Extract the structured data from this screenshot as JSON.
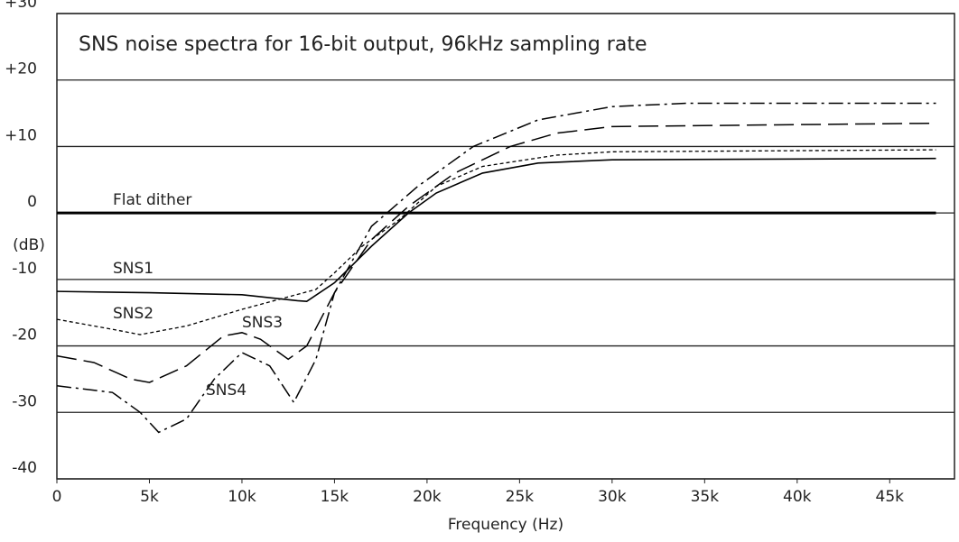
{
  "chart_data": {
    "type": "line",
    "title": "SNS noise spectra for 16-bit output, 96kHz sampling rate",
    "x_label": "Frequency (Hz)",
    "y_label": "(dB)",
    "xlim": [
      0,
      48500
    ],
    "ylim": [
      -40,
      30
    ],
    "xticks": [
      0,
      {
        "value": 5000,
        "label": "5k"
      },
      {
        "value": 10000,
        "label": "10k"
      },
      {
        "value": 15000,
        "label": "15k"
      },
      {
        "value": 20000,
        "label": "20k"
      },
      {
        "value": 25000,
        "label": "25k"
      },
      {
        "value": 30000,
        "label": "30k"
      },
      {
        "value": 35000,
        "label": "35k"
      },
      {
        "value": 40000,
        "label": "40k"
      },
      {
        "value": 45000,
        "label": "45k"
      }
    ],
    "yticks": [
      {
        "value": 30,
        "label": "+30"
      },
      {
        "value": 20,
        "label": "+20"
      },
      {
        "value": 10,
        "label": "+10"
      },
      0,
      -10,
      -20,
      -30,
      -40
    ],
    "grid": true,
    "series": [
      {
        "name": "Flat dither",
        "color": "#000000",
        "linestyle": "solid",
        "x": [
          0,
          47500
        ],
        "values": [
          0,
          0
        ]
      },
      {
        "name": "SNS1",
        "color": "#000000",
        "linestyle": "solid",
        "x": [
          0,
          5000,
          10000,
          13000,
          13500,
          15000,
          17000,
          19000,
          20500,
          23000,
          26000,
          30000,
          47500
        ],
        "values": [
          -11.8,
          -12,
          -12.3,
          -13.2,
          -13.3,
          -10.5,
          -5,
          0,
          3,
          6,
          7.5,
          8,
          8.2
        ]
      },
      {
        "name": "SNS2",
        "color": "#000000",
        "linestyle": "dotted",
        "x": [
          0,
          3000,
          4500,
          7000,
          10000,
          12000,
          14000,
          15000,
          16500,
          18500,
          20500,
          23000,
          27000,
          30000,
          47500
        ],
        "values": [
          -16,
          -17.5,
          -18.3,
          -17,
          -14.5,
          -13,
          -11.5,
          -9,
          -5,
          -1,
          4,
          7,
          8.7,
          9.2,
          9.5
        ]
      },
      {
        "name": "SNS3",
        "color": "#000000",
        "linestyle": "dashed",
        "x": [
          0,
          2000,
          4000,
          5000,
          7000,
          9000,
          10000,
          11000,
          12500,
          13500,
          15000,
          17000,
          19000,
          21500,
          24500,
          27000,
          30000,
          47500
        ],
        "values": [
          -21.5,
          -22.5,
          -25,
          -25.5,
          -23,
          -18.5,
          -18,
          -19,
          -22,
          -20,
          -12,
          -4,
          1,
          6,
          10,
          12,
          13,
          13.5
        ]
      },
      {
        "name": "SNS4",
        "color": "#000000",
        "linestyle": "dashdot",
        "x": [
          0,
          3000,
          4500,
          5500,
          7000,
          8500,
          10000,
          11500,
          12800,
          14000,
          15000,
          17000,
          19500,
          22500,
          26000,
          30000,
          34000,
          47500
        ],
        "values": [
          -26,
          -27,
          -30,
          -33,
          -31,
          -25,
          -21,
          -23,
          -28.5,
          -22,
          -12,
          -2,
          4,
          10,
          14,
          16,
          16.5,
          16.5
        ]
      }
    ]
  }
}
